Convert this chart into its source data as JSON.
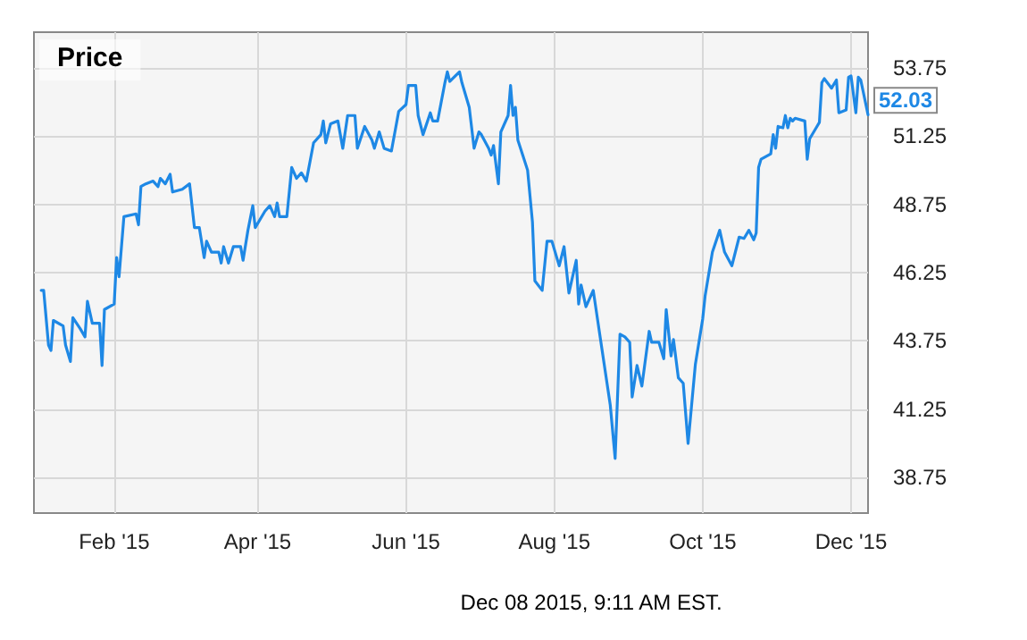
{
  "chart_data": {
    "type": "line",
    "title": "Price",
    "annotations": [
      "Dec 08 2015, 9:11 AM EST."
    ],
    "x": [
      "2015-01-02",
      "2015-01-03",
      "2015-01-05",
      "2015-01-06",
      "2015-01-07",
      "2015-01-11",
      "2015-01-12",
      "2015-01-14",
      "2015-01-15",
      "2015-01-18",
      "2015-01-20",
      "2015-01-21",
      "2015-01-23",
      "2015-01-26",
      "2015-01-27",
      "2015-01-28",
      "2015-02-01",
      "2015-02-02",
      "2015-02-03",
      "2015-02-05",
      "2015-02-10",
      "2015-02-11",
      "2015-02-12",
      "2015-02-14",
      "2015-02-17",
      "2015-02-19",
      "2015-02-20",
      "2015-02-22",
      "2015-02-24",
      "2015-02-25",
      "2015-03-01",
      "2015-03-04",
      "2015-03-06",
      "2015-03-08",
      "2015-03-10",
      "2015-03-11",
      "2015-03-13",
      "2015-03-16",
      "2015-03-17",
      "2015-03-18",
      "2015-03-20",
      "2015-03-22",
      "2015-03-25",
      "2015-03-26",
      "2015-03-28",
      "2015-03-30",
      "2015-03-31",
      "2015-04-04",
      "2015-04-06",
      "2015-04-08",
      "2015-04-09",
      "2015-04-10",
      "2015-04-13",
      "2015-04-15",
      "2015-04-17",
      "2015-04-19",
      "2015-04-21",
      "2015-04-24",
      "2015-04-27",
      "2015-04-28",
      "2015-04-29",
      "2015-05-01",
      "2015-05-04",
      "2015-05-06",
      "2015-05-08",
      "2015-05-11",
      "2015-05-12",
      "2015-05-15",
      "2015-05-18",
      "2015-05-19",
      "2015-05-21",
      "2015-05-23",
      "2015-05-26",
      "2015-05-29",
      "2015-06-01",
      "2015-06-02",
      "2015-06-05",
      "2015-06-06",
      "2015-06-08",
      "2015-06-11",
      "2015-06-12",
      "2015-06-14",
      "2015-06-17",
      "2015-06-18",
      "2015-06-19",
      "2015-06-23",
      "2015-06-24",
      "2015-06-27",
      "2015-06-29",
      "2015-07-01",
      "2015-07-02",
      "2015-07-05",
      "2015-07-06",
      "2015-07-07",
      "2015-07-09",
      "2015-07-10",
      "2015-07-13",
      "2015-07-14",
      "2015-07-15",
      "2015-07-16",
      "2015-07-17",
      "2015-07-19",
      "2015-07-21",
      "2015-07-23",
      "2015-07-24",
      "2015-07-27",
      "2015-07-29",
      "2015-07-31",
      "2015-08-03",
      "2015-08-05",
      "2015-08-07",
      "2015-08-10",
      "2015-08-11",
      "2015-08-12",
      "2015-08-14",
      "2015-08-17",
      "2015-08-20",
      "2015-08-24",
      "2015-08-26",
      "2015-08-28",
      "2015-08-30",
      "2015-09-01",
      "2015-09-02",
      "2015-09-04",
      "2015-09-06",
      "2015-09-09",
      "2015-09-10",
      "2015-09-13",
      "2015-09-15",
      "2015-09-16",
      "2015-09-18",
      "2015-09-19",
      "2015-09-21",
      "2015-09-23",
      "2015-09-25",
      "2015-09-28",
      "2015-10-01",
      "2015-10-02",
      "2015-10-05",
      "2015-10-08",
      "2015-10-10",
      "2015-10-13",
      "2015-10-16",
      "2015-10-18",
      "2015-10-20",
      "2015-10-22",
      "2015-10-23",
      "2015-10-24",
      "2015-10-25",
      "2015-10-27",
      "2015-10-29",
      "2015-10-30",
      "2015-10-31",
      "2015-11-01",
      "2015-11-03",
      "2015-11-04",
      "2015-11-05",
      "2015-11-06",
      "2015-11-07",
      "2015-11-08",
      "2015-11-12",
      "2015-11-13",
      "2015-11-14",
      "2015-11-17",
      "2015-11-18",
      "2015-11-19",
      "2015-11-20",
      "2015-11-23",
      "2015-11-25",
      "2015-11-26",
      "2015-11-29",
      "2015-11-30",
      "2015-12-01",
      "2015-12-03",
      "2015-12-04",
      "2015-12-05",
      "2015-12-08"
    ],
    "series": [
      {
        "color": "#1e88e5",
        "values": [
          45.6,
          45.6,
          43.6,
          43.4,
          44.5,
          44.3,
          43.6,
          43.0,
          44.6,
          44.2,
          43.9,
          45.2,
          44.4,
          44.4,
          42.85,
          44.9,
          45.1,
          46.8,
          46.1,
          48.3,
          48.4,
          48.0,
          49.4,
          49.5,
          49.6,
          49.4,
          49.7,
          49.5,
          49.85,
          49.2,
          49.3,
          49.5,
          47.9,
          47.9,
          46.8,
          47.4,
          47.0,
          47.0,
          46.6,
          47.2,
          46.6,
          47.2,
          47.2,
          46.7,
          47.8,
          48.7,
          47.9,
          48.5,
          48.7,
          48.3,
          48.8,
          48.3,
          48.3,
          50.1,
          49.7,
          49.9,
          49.6,
          51.0,
          51.3,
          51.8,
          51.0,
          51.7,
          51.8,
          50.8,
          52.0,
          52.0,
          50.8,
          51.6,
          51.1,
          50.8,
          51.4,
          50.8,
          50.7,
          52.15,
          52.4,
          53.1,
          53.1,
          52.0,
          51.3,
          52.1,
          51.8,
          51.8,
          53.2,
          53.6,
          53.25,
          53.6,
          53.2,
          52.3,
          50.8,
          51.4,
          51.3,
          50.8,
          50.55,
          50.9,
          49.5,
          51.4,
          52.0,
          53.1,
          52.0,
          52.3,
          51.1,
          50.55,
          50.0,
          48.1,
          45.95,
          45.6,
          47.4,
          47.4,
          46.5,
          47.2,
          45.5,
          46.7,
          45.1,
          45.8,
          45.0,
          45.6,
          43.8,
          41.4,
          39.45,
          44.0,
          43.9,
          43.7,
          41.7,
          42.85,
          42.1,
          44.1,
          43.7,
          43.7,
          43.1,
          44.9,
          43.2,
          43.8,
          42.4,
          42.2,
          40.0,
          42.9,
          44.55,
          45.4,
          47.0,
          47.8,
          47.0,
          46.5,
          47.55,
          47.5,
          47.8,
          47.45,
          47.7,
          50.1,
          50.4,
          50.5,
          50.6,
          51.3,
          50.8,
          51.6,
          51.55,
          52.0,
          51.55,
          51.9,
          51.8,
          51.9,
          51.8,
          50.4,
          51.15,
          51.6,
          51.75,
          53.2,
          53.35,
          53.0,
          53.3,
          52.1,
          52.2,
          53.4,
          53.45,
          52.1,
          53.4,
          53.3,
          52.03
        ],
        "value_labels": [
          null,
          null,
          null,
          null,
          null,
          null,
          null,
          null,
          null,
          null,
          null,
          null,
          null,
          null,
          null,
          null,
          null,
          null,
          null,
          null,
          null,
          null,
          null,
          null,
          null,
          null,
          null,
          null,
          null,
          null,
          null,
          null,
          null,
          null,
          null,
          null,
          null,
          null,
          null,
          null,
          null,
          null,
          null,
          null,
          null,
          null,
          null,
          null,
          null,
          null,
          null,
          null,
          null,
          null,
          null,
          null,
          null,
          null,
          null,
          null,
          null,
          null,
          null,
          null,
          null,
          null,
          null,
          null,
          null,
          null,
          null,
          null,
          null,
          null,
          null,
          null,
          null,
          null,
          null,
          null,
          null,
          null,
          null,
          null,
          null,
          null,
          null,
          null,
          null,
          null,
          null,
          null,
          null,
          null,
          null,
          null,
          null,
          null,
          null,
          null,
          null,
          null,
          null,
          null,
          null,
          null,
          null,
          null,
          null,
          null,
          null,
          null,
          null,
          null,
          null,
          null,
          null,
          null,
          null,
          null,
          null,
          null,
          null,
          null,
          null,
          null,
          null,
          null,
          null,
          null,
          null,
          null,
          null,
          null,
          null,
          null,
          null,
          null,
          null,
          null,
          null,
          null,
          null,
          null,
          null,
          null,
          null,
          null,
          null,
          null,
          null,
          null,
          null,
          null,
          null,
          null,
          null,
          null,
          null,
          null,
          null,
          null,
          null,
          null,
          null,
          null,
          null,
          null,
          null,
          null,
          null,
          null,
          null,
          null,
          null,
          null,
          "52.03"
        ]
      }
    ],
    "xlim": [
      "2014-12-30",
      "2015-12-08"
    ],
    "xticks": [
      {
        "value": "2015-02-01",
        "label": "Feb '15"
      },
      {
        "value": "2015-04-01",
        "label": "Apr '15"
      },
      {
        "value": "2015-06-01",
        "label": "Jun '15"
      },
      {
        "value": "2015-08-01",
        "label": "Aug '15"
      },
      {
        "value": "2015-10-01",
        "label": "Oct '15"
      },
      {
        "value": "2015-12-01",
        "label": "Dec '15"
      }
    ],
    "ylim": [
      37.45,
      55.05
    ],
    "yticks": [
      38.75,
      41.25,
      43.75,
      46.25,
      48.75,
      51.25,
      53.75
    ],
    "grid": true,
    "marker": "none",
    "line_style": "solid"
  }
}
